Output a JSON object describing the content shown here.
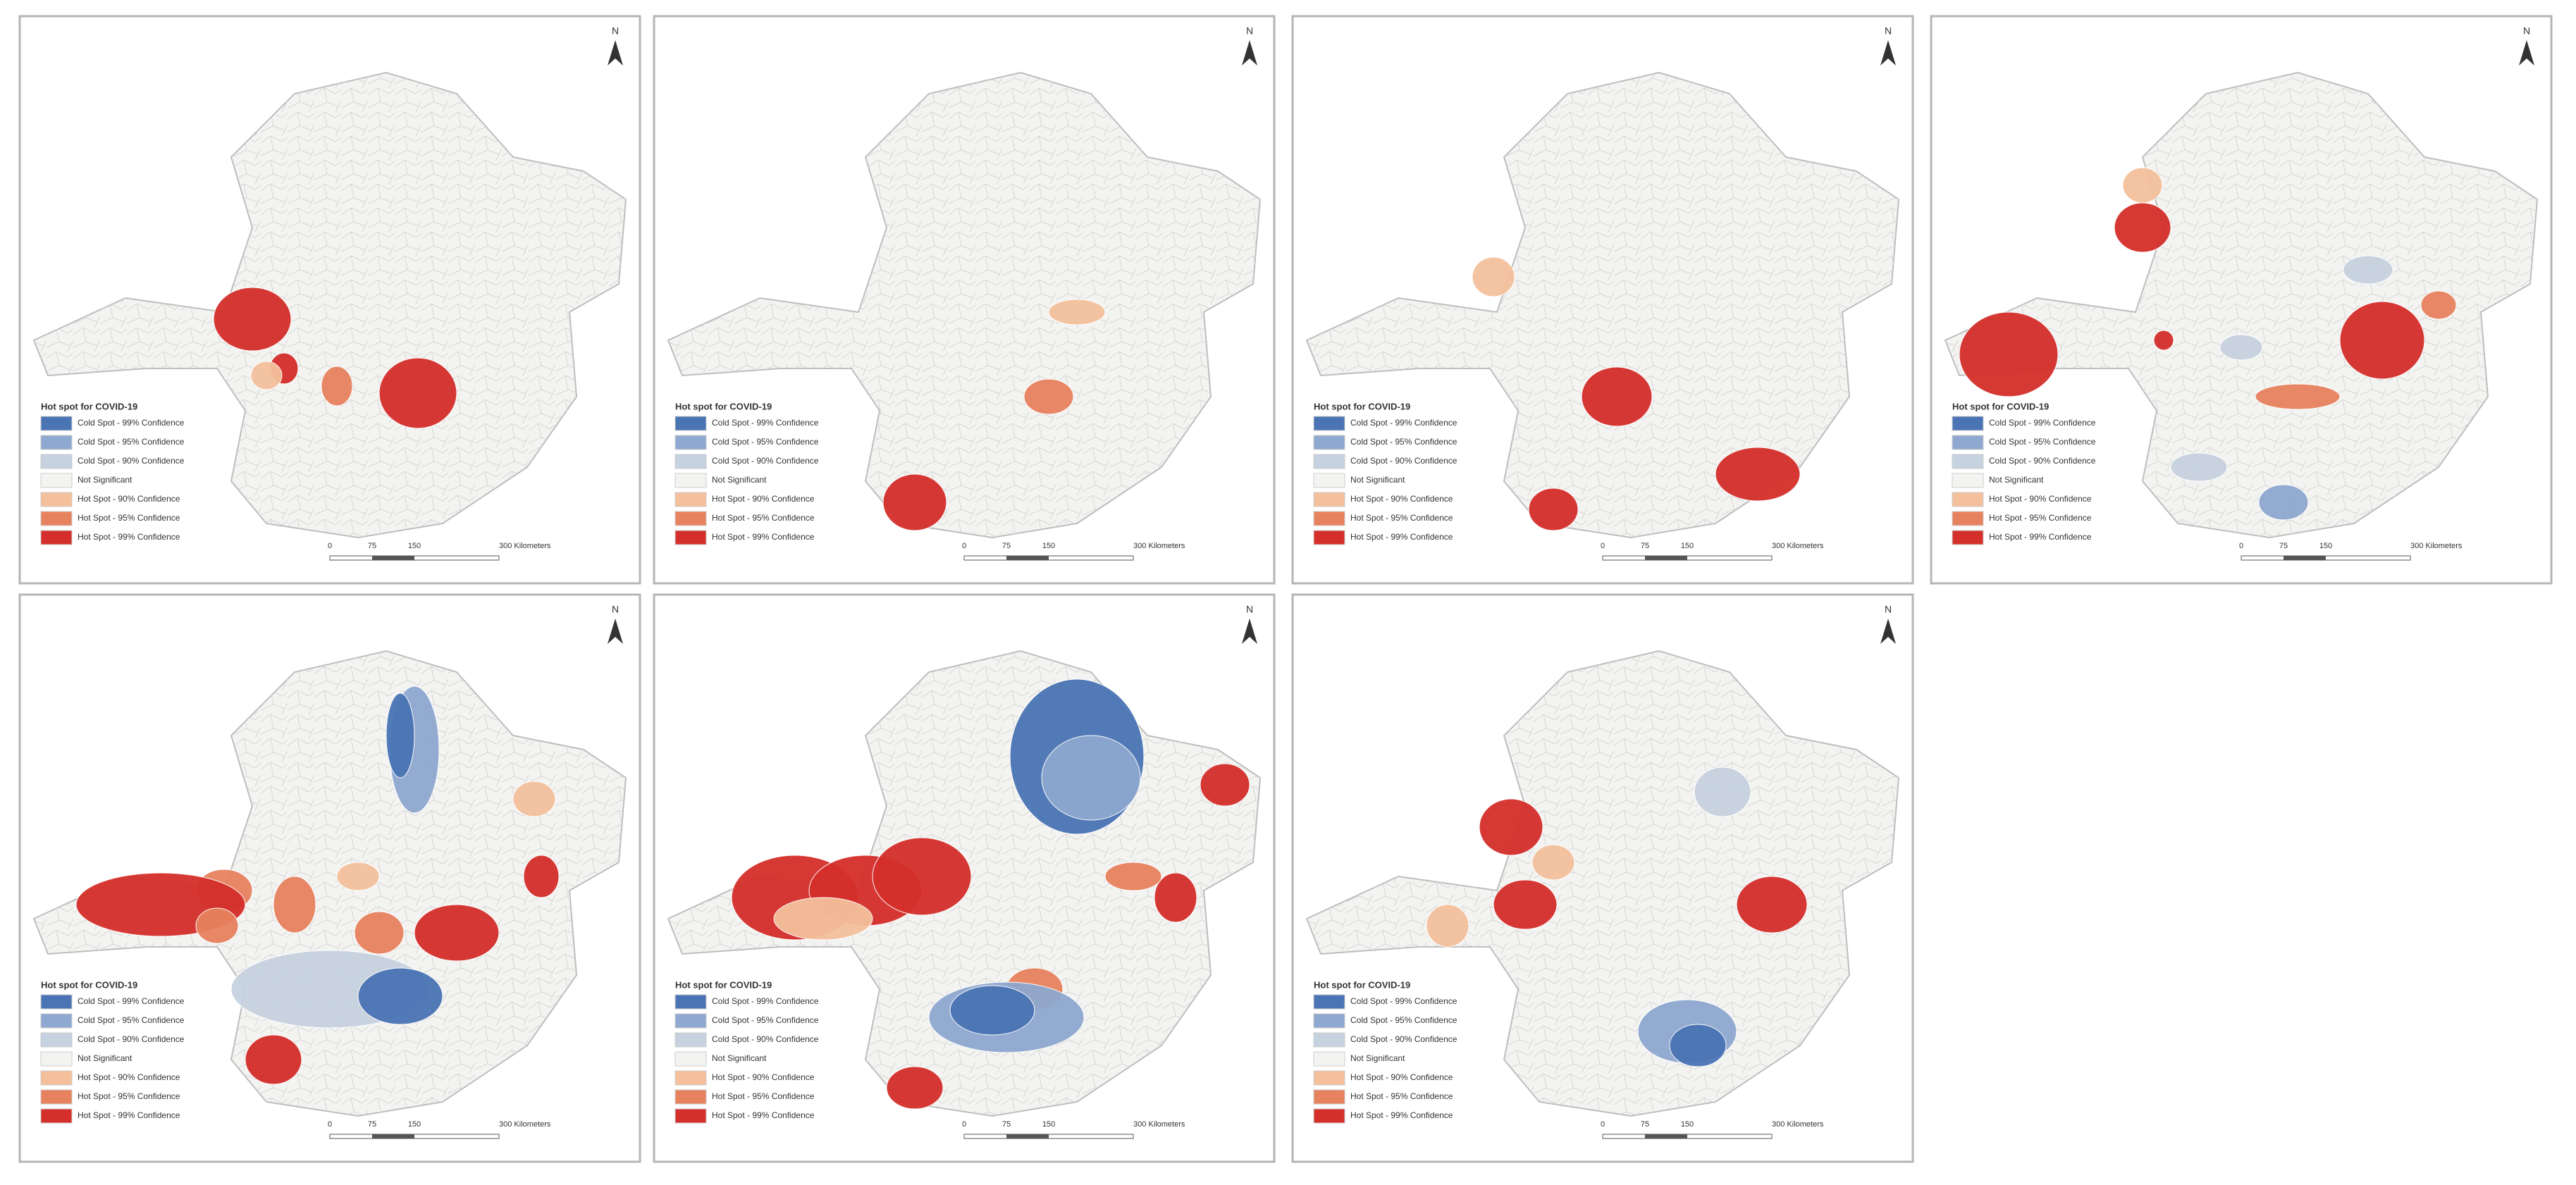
{
  "legend": {
    "title": "Hot spot for COVID-19",
    "items": [
      {
        "label": "Cold Spot - 99% Confidence",
        "color": "#4a74b4"
      },
      {
        "label": "Cold Spot - 95% Confidence",
        "color": "#8ea8cf"
      },
      {
        "label": "Cold Spot - 90% Confidence",
        "color": "#c6d2df"
      },
      {
        "label": "Not Significant",
        "color": "#f3f3f1"
      },
      {
        "label": "Hot Spot - 90% Confidence",
        "color": "#f4c09c"
      },
      {
        "label": "Hot Spot - 95% Confidence",
        "color": "#e7825f"
      },
      {
        "label": "Hot Spot - 99% Confidence",
        "color": "#d42f2a"
      }
    ]
  },
  "scale_bar": {
    "ticks": [
      "0",
      "75",
      "150",
      "300 Kilometers"
    ]
  },
  "north_label": "N"
}
